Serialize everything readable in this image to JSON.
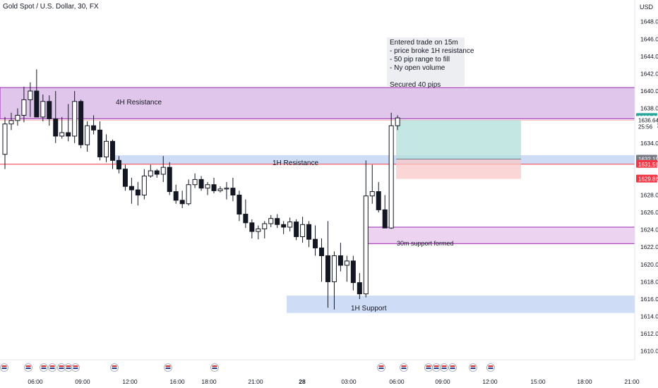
{
  "header": {
    "title": "Gold Spot / U.S. Dollar, 30, FX"
  },
  "axis": {
    "currency": "USD",
    "ylim": [
      1609,
      1650.5
    ],
    "ticks": [
      1610,
      1612,
      1614,
      1616,
      1618,
      1620,
      1622,
      1624,
      1626,
      1628,
      1630,
      1632,
      1634,
      1636,
      1638,
      1640,
      1642,
      1644,
      1646,
      1648
    ],
    "tick_labels": [
      "1610.00",
      "1612.00",
      "1614.00",
      "1616.00",
      "1618.00",
      "1620.00",
      "1622.00",
      "1624.00",
      "1626.00",
      "1628.00",
      "1630.00",
      "1632.00",
      "1634.00",
      "1636.00",
      "1638.00",
      "1640.00",
      "1642.00",
      "1644.00",
      "1646.00",
      "1648.00"
    ],
    "time_labels": [
      "06:00",
      "09:00",
      "12:00",
      "16:00",
      "18:00",
      "21:00",
      "28",
      "03:00",
      "06:00",
      "09:00",
      "12:00",
      "15:00",
      "18:00",
      "21:00"
    ],
    "price_tags": [
      {
        "text": "1636.96",
        "price": 1636.96,
        "color": "#26a69a"
      },
      {
        "text": "1636.64",
        "price": 1636.64,
        "color": "#ffffff"
      },
      {
        "text": "25:56",
        "price": 1635.9,
        "color": "#ffffff"
      },
      {
        "text": "1632.15",
        "price": 1632.15,
        "color": "#787b86"
      },
      {
        "text": "1631.56",
        "price": 1631.56,
        "color": "#f23645"
      },
      {
        "text": "1629.86",
        "price": 1629.86,
        "color": "#f23645"
      }
    ]
  },
  "annotations": {
    "zone_4h_resistance": "4H Resistance",
    "zone_1h_resistance": "1H Resistance",
    "zone_1h_support": "1H Support",
    "zone_30m_support": "30m support formed",
    "note_lines": [
      "Entered trade on 15m",
      "- price broke 1H resistance",
      "- 50 pip range to fill",
      "- Ny open volume",
      "",
      "Secured 40 pips"
    ]
  },
  "chart_data": {
    "type": "candlestick",
    "title": "Gold Spot / U.S. Dollar, 30, FX",
    "ylabel": "USD",
    "ylim": [
      1609,
      1650.5
    ],
    "candles": [
      {
        "o": 1632.7,
        "h": 1637.0,
        "l": 1631.0,
        "c": 1636.2
      },
      {
        "o": 1636.2,
        "h": 1637.5,
        "l": 1635.5,
        "c": 1636.6
      },
      {
        "o": 1636.6,
        "h": 1638.0,
        "l": 1636.0,
        "c": 1637.2
      },
      {
        "o": 1637.2,
        "h": 1640.5,
        "l": 1636.4,
        "c": 1639.0
      },
      {
        "o": 1639.0,
        "h": 1641.0,
        "l": 1637.0,
        "c": 1640.0
      },
      {
        "o": 1640.0,
        "h": 1642.5,
        "l": 1637.0,
        "c": 1637.0
      },
      {
        "o": 1637.0,
        "h": 1639.6,
        "l": 1636.5,
        "c": 1638.8
      },
      {
        "o": 1638.8,
        "h": 1639.5,
        "l": 1636.0,
        "c": 1636.8
      },
      {
        "o": 1636.8,
        "h": 1640.0,
        "l": 1634.0,
        "c": 1634.8
      },
      {
        "o": 1634.8,
        "h": 1637.0,
        "l": 1634.5,
        "c": 1635.2
      },
      {
        "o": 1635.2,
        "h": 1638.5,
        "l": 1634.2,
        "c": 1634.8
      },
      {
        "o": 1634.8,
        "h": 1640.0,
        "l": 1634.0,
        "c": 1638.8
      },
      {
        "o": 1638.8,
        "h": 1639.0,
        "l": 1633.4,
        "c": 1633.8
      },
      {
        "o": 1633.8,
        "h": 1636.5,
        "l": 1633.0,
        "c": 1636.0
      },
      {
        "o": 1636.0,
        "h": 1637.2,
        "l": 1635.0,
        "c": 1635.5
      },
      {
        "o": 1635.5,
        "h": 1636.5,
        "l": 1632.0,
        "c": 1632.4
      },
      {
        "o": 1632.4,
        "h": 1635.0,
        "l": 1631.8,
        "c": 1634.2
      },
      {
        "o": 1634.2,
        "h": 1634.4,
        "l": 1631.0,
        "c": 1632.0
      },
      {
        "o": 1632.0,
        "h": 1632.5,
        "l": 1630.5,
        "c": 1631.0
      },
      {
        "o": 1631.0,
        "h": 1631.5,
        "l": 1628.5,
        "c": 1629.0
      },
      {
        "o": 1629.0,
        "h": 1630.0,
        "l": 1627.0,
        "c": 1628.6
      },
      {
        "o": 1628.6,
        "h": 1629.5,
        "l": 1626.8,
        "c": 1628.0
      },
      {
        "o": 1628.0,
        "h": 1631.0,
        "l": 1627.5,
        "c": 1630.2
      },
      {
        "o": 1630.2,
        "h": 1631.5,
        "l": 1630.0,
        "c": 1630.8
      },
      {
        "o": 1630.8,
        "h": 1631.0,
        "l": 1630.0,
        "c": 1630.4
      },
      {
        "o": 1630.4,
        "h": 1632.5,
        "l": 1629.5,
        "c": 1631.2
      },
      {
        "o": 1631.2,
        "h": 1631.8,
        "l": 1628.0,
        "c": 1628.4
      },
      {
        "o": 1628.4,
        "h": 1629.2,
        "l": 1627.0,
        "c": 1627.4
      },
      {
        "o": 1627.4,
        "h": 1628.5,
        "l": 1626.5,
        "c": 1627.0
      },
      {
        "o": 1627.0,
        "h": 1629.8,
        "l": 1626.8,
        "c": 1629.2
      },
      {
        "o": 1629.2,
        "h": 1630.5,
        "l": 1628.8,
        "c": 1629.8
      },
      {
        "o": 1629.8,
        "h": 1630.2,
        "l": 1628.5,
        "c": 1628.8
      },
      {
        "o": 1628.8,
        "h": 1629.5,
        "l": 1628.0,
        "c": 1629.2
      },
      {
        "o": 1629.2,
        "h": 1630.0,
        "l": 1628.2,
        "c": 1628.5
      },
      {
        "o": 1628.5,
        "h": 1629.0,
        "l": 1628.3,
        "c": 1628.7
      },
      {
        "o": 1628.7,
        "h": 1629.5,
        "l": 1627.5,
        "c": 1628.8
      },
      {
        "o": 1628.8,
        "h": 1630.0,
        "l": 1627.3,
        "c": 1628.0
      },
      {
        "o": 1628.0,
        "h": 1628.5,
        "l": 1625.0,
        "c": 1625.8
      },
      {
        "o": 1625.8,
        "h": 1627.5,
        "l": 1624.2,
        "c": 1624.8
      },
      {
        "o": 1624.8,
        "h": 1625.2,
        "l": 1623.0,
        "c": 1623.8
      },
      {
        "o": 1623.8,
        "h": 1624.5,
        "l": 1622.9,
        "c": 1624.1
      },
      {
        "o": 1624.1,
        "h": 1625.0,
        "l": 1623.0,
        "c": 1624.7
      },
      {
        "o": 1624.7,
        "h": 1625.7,
        "l": 1624.3,
        "c": 1625.3
      },
      {
        "o": 1625.3,
        "h": 1625.8,
        "l": 1624.2,
        "c": 1624.6
      },
      {
        "o": 1624.6,
        "h": 1625.0,
        "l": 1623.5,
        "c": 1624.3
      },
      {
        "o": 1624.3,
        "h": 1625.4,
        "l": 1623.8,
        "c": 1624.9
      },
      {
        "o": 1624.9,
        "h": 1625.2,
        "l": 1622.8,
        "c": 1623.2
      },
      {
        "o": 1623.2,
        "h": 1625.5,
        "l": 1622.5,
        "c": 1624.6
      },
      {
        "o": 1624.6,
        "h": 1625.0,
        "l": 1622.0,
        "c": 1622.9
      },
      {
        "o": 1622.9,
        "h": 1624.5,
        "l": 1621.0,
        "c": 1621.9
      },
      {
        "o": 1621.9,
        "h": 1623.0,
        "l": 1618.0,
        "c": 1621.0
      },
      {
        "o": 1621.0,
        "h": 1625.0,
        "l": 1615.0,
        "c": 1618.0
      },
      {
        "o": 1618.0,
        "h": 1621.5,
        "l": 1614.8,
        "c": 1621.0
      },
      {
        "o": 1621.0,
        "h": 1622.5,
        "l": 1619.2,
        "c": 1619.9
      },
      {
        "o": 1619.9,
        "h": 1621.0,
        "l": 1618.0,
        "c": 1620.4
      },
      {
        "o": 1620.4,
        "h": 1621.0,
        "l": 1617.0,
        "c": 1617.9
      },
      {
        "o": 1617.9,
        "h": 1619.0,
        "l": 1616.0,
        "c": 1616.6
      },
      {
        "o": 1616.6,
        "h": 1632.0,
        "l": 1616.2,
        "c": 1627.9
      },
      {
        "o": 1627.9,
        "h": 1631.5,
        "l": 1627.0,
        "c": 1628.4
      },
      {
        "o": 1628.4,
        "h": 1629.5,
        "l": 1626.0,
        "c": 1626.3
      },
      {
        "o": 1626.3,
        "h": 1628.0,
        "l": 1624.2,
        "c": 1624.2
      },
      {
        "o": 1624.2,
        "h": 1637.5,
        "l": 1624.1,
        "c": 1636.0
      },
      {
        "o": 1636.0,
        "h": 1637.2,
        "l": 1635.5,
        "c": 1636.9
      }
    ],
    "zones": [
      {
        "label": "4H Resistance",
        "from": 1636.8,
        "to": 1640.4
      },
      {
        "label": "1H Resistance",
        "from": 1631.6,
        "to": 1632.6
      },
      {
        "label": "1H Support",
        "from": 1614.4,
        "to": 1616.4
      },
      {
        "label": "30m support formed",
        "from": 1622.4,
        "to": 1624.3
      }
    ],
    "position": {
      "entry": 1632.15,
      "target": 1636.64,
      "stop": 1629.86
    }
  }
}
